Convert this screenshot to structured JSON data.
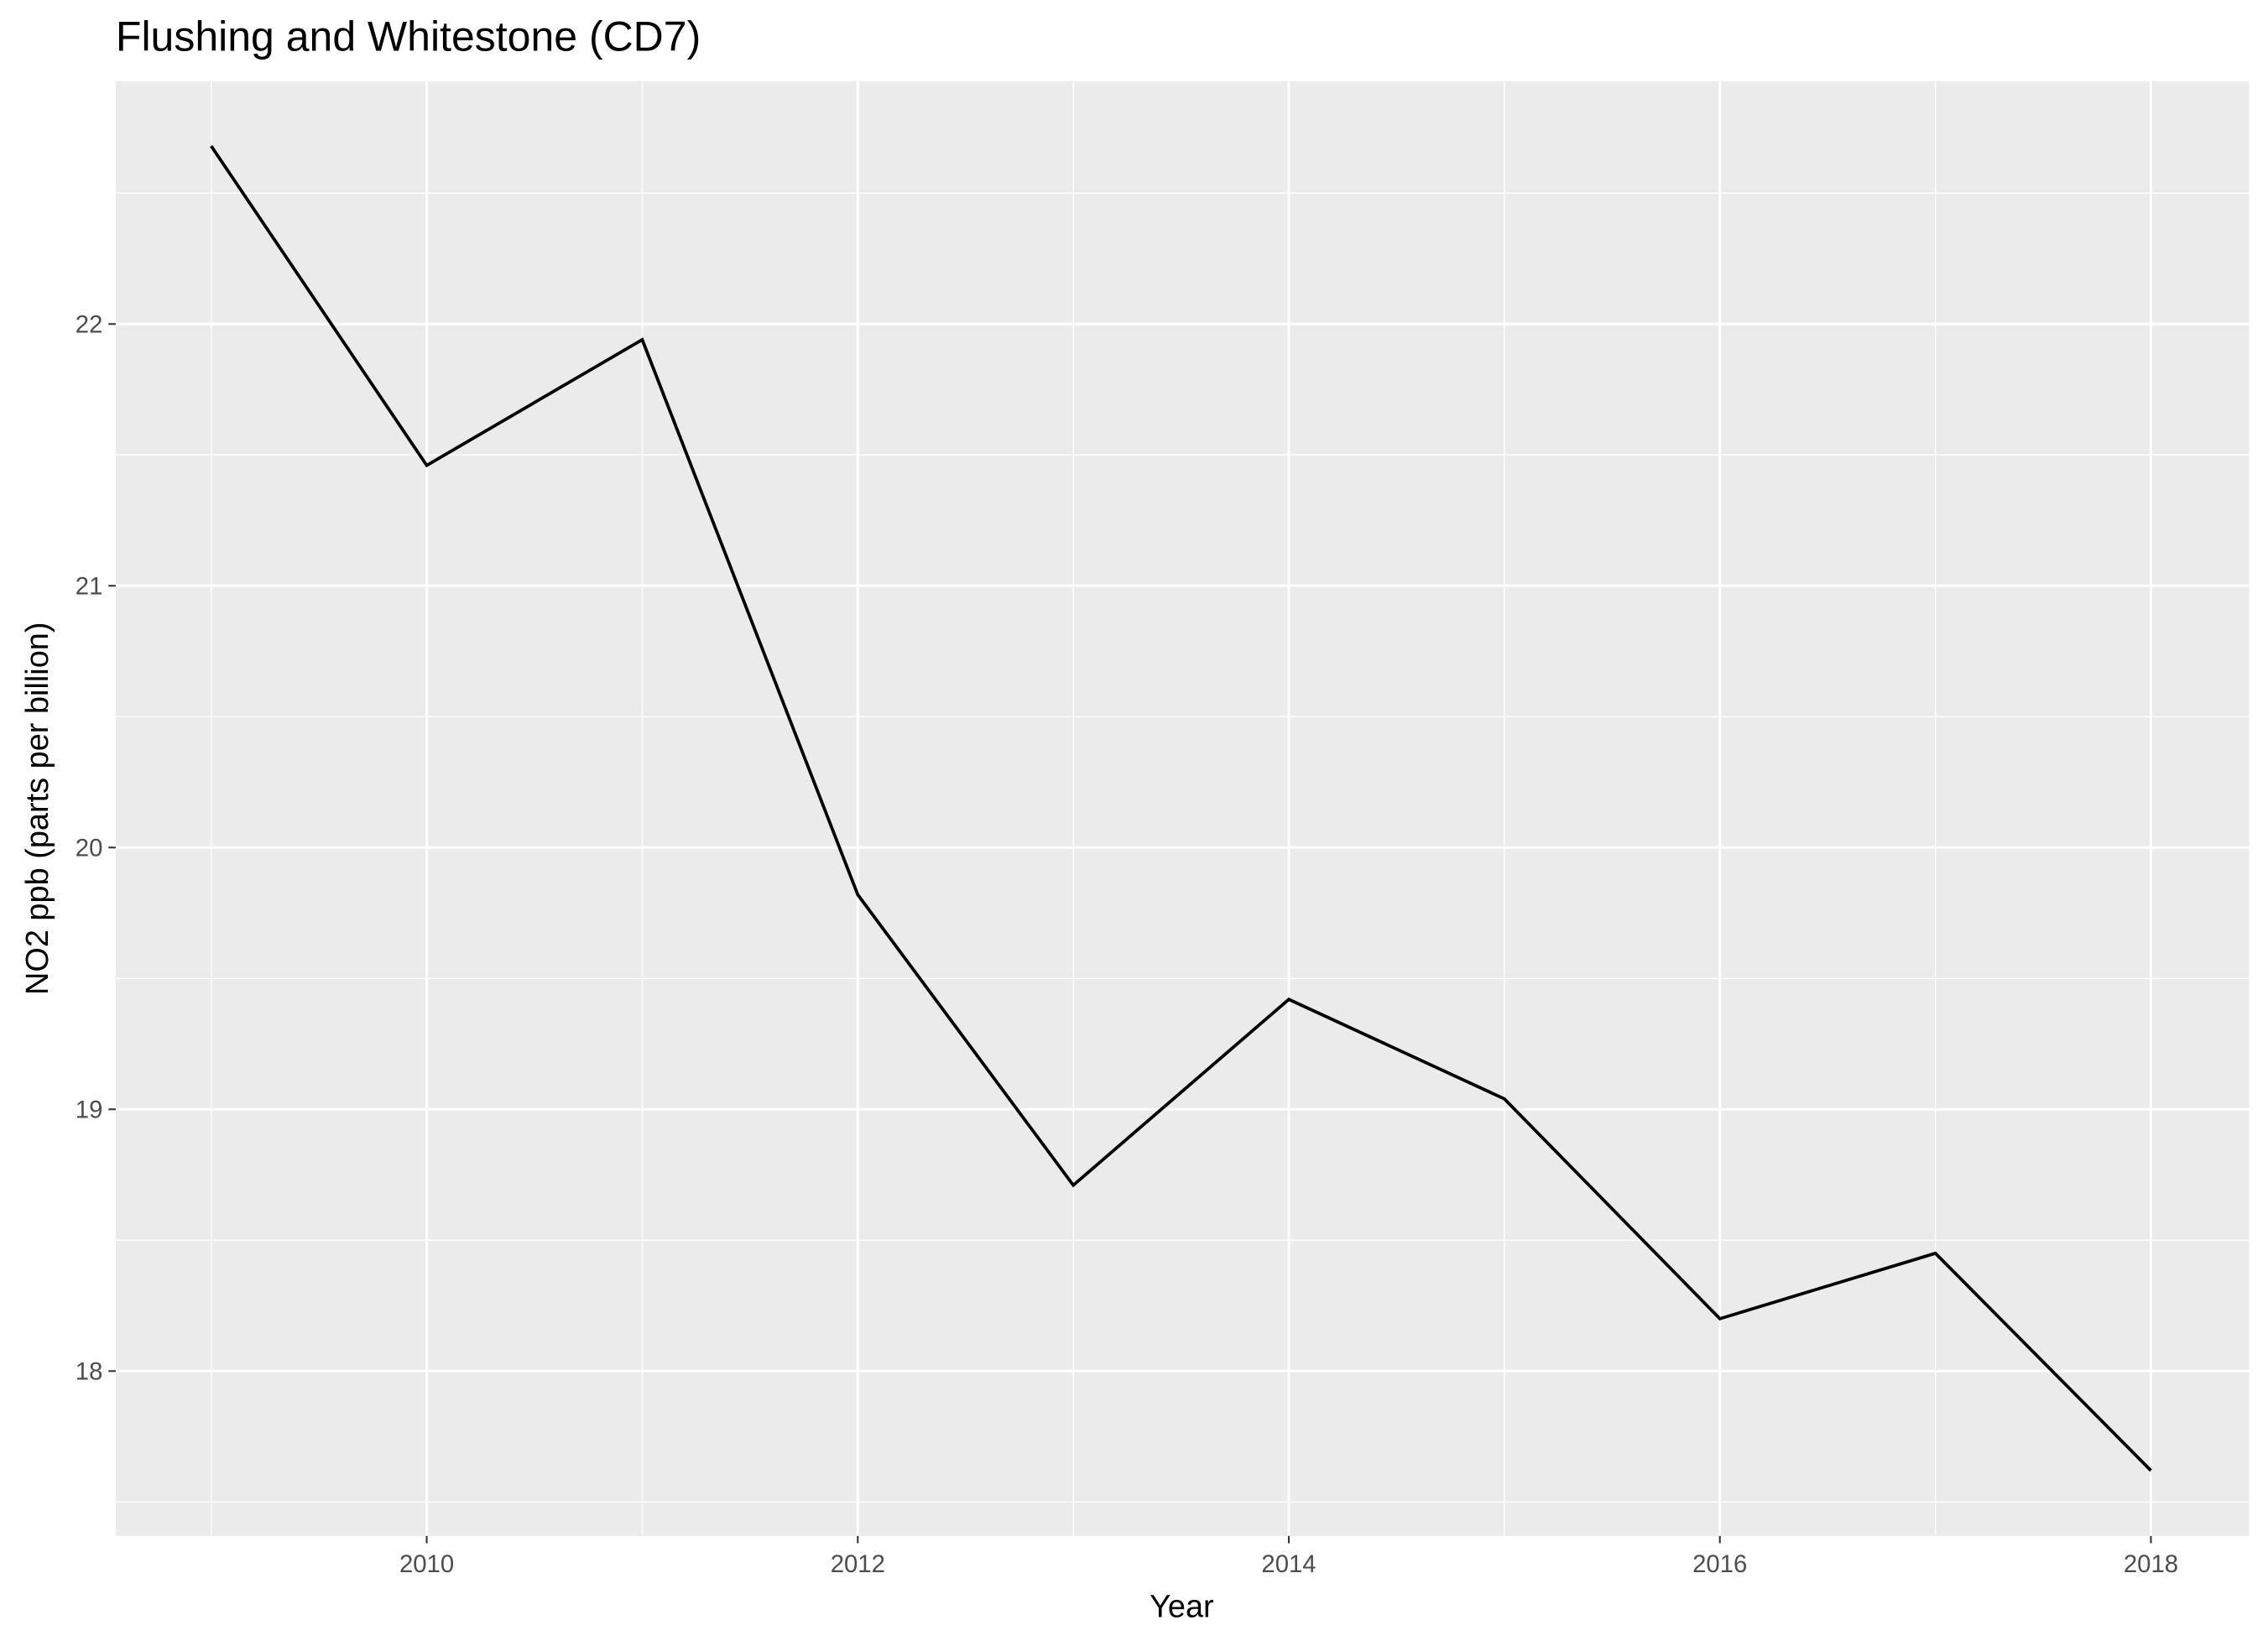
{
  "chart_data": {
    "type": "line",
    "title": "Flushing and Whitestone (CD7)",
    "x_label": "Year",
    "y_label": "NO2 ppb (parts per billion)",
    "x": [
      2009,
      2010,
      2011,
      2012,
      2013,
      2014,
      2015,
      2016,
      2017,
      2018
    ],
    "series": [
      {
        "name": "NO2",
        "color": "#000000",
        "values": [
          22.68,
          21.46,
          21.94,
          19.82,
          18.71,
          19.42,
          19.04,
          18.2,
          18.45,
          17.62
        ]
      }
    ],
    "xlim": [
      2008.557,
      2018.456
    ],
    "xticks": [
      2010,
      2012,
      2014,
      2016,
      2018
    ],
    "ylim": [
      17.37,
      22.928
    ],
    "yticks": [
      18,
      19,
      20,
      21,
      22
    ],
    "grid": true
  }
}
